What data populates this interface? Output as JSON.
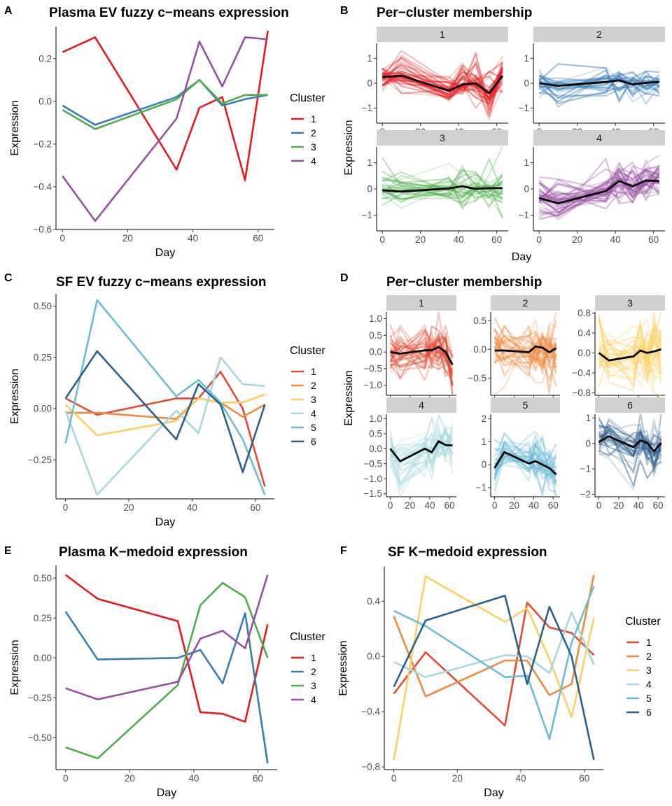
{
  "colors": {
    "set1": [
      "#e41a1c",
      "#377eb8",
      "#4daf4a",
      "#984ea3"
    ],
    "rdylbu": [
      "#e34a33",
      "#ef8a3e",
      "#fdcf63",
      "#a6d8e0",
      "#6bbcd6",
      "#2b5f8e"
    ],
    "center_line": "#000000",
    "strip_bg": "#d0d0d0"
  },
  "panels": {
    "A": {
      "letter": "A",
      "title": "Plasma EV fuzzy c−means expression",
      "xlabel": "Day",
      "ylabel": "Expression",
      "legend_title": "Cluster",
      "chart_data": {
        "type": "line",
        "x": [
          0,
          10,
          35,
          42,
          49,
          56,
          63
        ],
        "xlim": [
          -2,
          65
        ],
        "ylim": [
          -0.6,
          0.35
        ],
        "xticks": [
          0,
          20,
          40,
          60
        ],
        "xtick_labels": [
          "0",
          "20",
          "40",
          "60"
        ],
        "yticks": [
          -0.6,
          -0.4,
          -0.2,
          0.0,
          0.2
        ],
        "ytick_labels": [
          "−0.6",
          "−0.4",
          "−0.2",
          "0.0",
          "0.2"
        ],
        "grid": false,
        "legend_position": "right",
        "series": [
          {
            "name": "1",
            "values": [
              0.23,
              0.3,
              -0.32,
              -0.03,
              0.02,
              -0.37,
              0.33
            ]
          },
          {
            "name": "2",
            "values": [
              -0.02,
              -0.11,
              0.02,
              0.1,
              -0.02,
              0.01,
              0.03
            ]
          },
          {
            "name": "3",
            "values": [
              -0.04,
              -0.13,
              0.01,
              0.1,
              -0.01,
              0.03,
              0.03
            ]
          },
          {
            "name": "4",
            "values": [
              -0.35,
              -0.56,
              -0.08,
              0.28,
              0.07,
              0.3,
              0.29
            ]
          }
        ]
      }
    },
    "B": {
      "letter": "B",
      "title": "Per−cluster membership",
      "xlabel": "Day",
      "ylabel": "Expression",
      "chart_data": {
        "type": "line",
        "x": [
          0,
          10,
          35,
          42,
          49,
          56,
          63
        ],
        "xlim": [
          -3,
          66
        ],
        "xticks": [
          0,
          20,
          40,
          60
        ],
        "xtick_labels": [
          "0",
          "20",
          "40",
          "60"
        ],
        "ylim": [
          -1.6,
          1.6
        ],
        "yticks": [
          -1,
          0,
          1
        ],
        "ytick_labels": [
          "−1",
          "0",
          "1"
        ],
        "grid": false,
        "facets": [
          {
            "label": "1",
            "center": [
              0.25,
              0.3,
              -0.3,
              -0.05,
              0.0,
              -0.4,
              0.3
            ],
            "n": 35,
            "spread": 0.35
          },
          {
            "label": "2",
            "center": [
              0.0,
              -0.1,
              0.05,
              0.12,
              -0.05,
              0.02,
              0.05
            ],
            "n": 25,
            "spread": 0.3
          },
          {
            "label": "3",
            "center": [
              -0.05,
              -0.1,
              0.02,
              0.1,
              0.0,
              0.03,
              0.03
            ],
            "n": 25,
            "spread": 0.4
          },
          {
            "label": "4",
            "center": [
              -0.35,
              -0.55,
              -0.08,
              0.3,
              0.1,
              0.32,
              0.3
            ],
            "n": 35,
            "spread": 0.35
          }
        ]
      }
    },
    "C": {
      "letter": "C",
      "title": "SF EV fuzzy c−means expression",
      "xlabel": "Day",
      "ylabel": "Expression",
      "legend_title": "Cluster",
      "chart_data": {
        "type": "line",
        "x": [
          0,
          10,
          35,
          42,
          49,
          56,
          63
        ],
        "xlim": [
          -3,
          66
        ],
        "ylim": [
          -0.44,
          0.56
        ],
        "xticks": [
          0,
          20,
          40,
          60
        ],
        "xtick_labels": [
          "0",
          "20",
          "40",
          "60"
        ],
        "yticks": [
          -0.25,
          0.0,
          0.25,
          0.5
        ],
        "ytick_labels": [
          "−0.25",
          "0.00",
          "0.25",
          "0.50"
        ],
        "grid": false,
        "legend_position": "right",
        "series": [
          {
            "name": "1",
            "values": [
              0.05,
              -0.03,
              0.05,
              0.05,
              0.18,
              0.0,
              -0.38
            ]
          },
          {
            "name": "2",
            "values": [
              -0.02,
              -0.02,
              -0.05,
              0.05,
              0.03,
              -0.04,
              0.02
            ]
          },
          {
            "name": "3",
            "values": [
              0.02,
              -0.13,
              -0.06,
              0.05,
              0.03,
              0.03,
              0.07
            ]
          },
          {
            "name": "4",
            "values": [
              -0.01,
              -0.42,
              -0.01,
              -0.12,
              0.25,
              0.12,
              0.11
            ]
          },
          {
            "name": "5",
            "values": [
              -0.17,
              0.53,
              0.06,
              0.14,
              0.03,
              -0.15,
              -0.42
            ]
          },
          {
            "name": "6",
            "values": [
              0.05,
              0.28,
              -0.15,
              0.12,
              0.02,
              -0.31,
              0.02
            ]
          }
        ]
      }
    },
    "D": {
      "letter": "D",
      "title": "Per−cluster membership",
      "xlabel": "Day",
      "ylabel": "Expression",
      "chart_data": {
        "type": "line",
        "x": [
          0,
          10,
          35,
          42,
          49,
          56,
          63
        ],
        "xlim": [
          -4,
          67
        ],
        "xticks": [
          0,
          20,
          40,
          60
        ],
        "xtick_labels": [
          "0",
          "20",
          "40",
          "60"
        ],
        "grid": false,
        "facets": [
          {
            "label": "1",
            "center": [
              0.0,
              -0.05,
              0.05,
              0.05,
              0.15,
              0.0,
              -0.38
            ],
            "n": 30,
            "spread": 0.35,
            "ylim": [
              -1.3,
              1.2
            ],
            "yticks": [
              -1.0,
              -0.5,
              0.0,
              0.5,
              1.0
            ],
            "ytick_labels": [
              "−1.0",
              "−0.5",
              "0.0",
              "0.5",
              "1.0"
            ]
          },
          {
            "label": "2",
            "center": [
              -0.02,
              -0.02,
              -0.05,
              0.05,
              0.03,
              -0.05,
              0.02
            ],
            "n": 30,
            "spread": 0.25,
            "ylim": [
              -0.8,
              0.65
            ],
            "yticks": [
              -0.5,
              0.0,
              0.5
            ],
            "ytick_labels": [
              "−0.5",
              "0.0",
              "0.5"
            ]
          },
          {
            "label": "3",
            "center": [
              0.0,
              -0.15,
              -0.07,
              0.05,
              0.0,
              0.03,
              0.07
            ],
            "n": 30,
            "spread": 0.3,
            "ylim": [
              -0.85,
              0.82
            ],
            "yticks": [
              -0.8,
              -0.4,
              0.0,
              0.4,
              0.8
            ],
            "ytick_labels": [
              "−0.8",
              "−0.4",
              "0.0",
              "0.4",
              "0.8"
            ]
          },
          {
            "label": "4",
            "center": [
              0.0,
              -0.42,
              0.0,
              -0.12,
              0.25,
              0.12,
              0.11
            ],
            "n": 30,
            "spread": 0.35,
            "ylim": [
              -1.6,
              1.15
            ],
            "yticks": [
              -1.5,
              -1.0,
              -0.5,
              0.0,
              0.5,
              1.0
            ],
            "ytick_labels": [
              "−1.5",
              "−1.0",
              "−0.5",
              "0.0",
              "0.5",
              "1.0"
            ]
          },
          {
            "label": "5",
            "center": [
              -0.15,
              0.55,
              0.05,
              0.15,
              0.0,
              -0.15,
              -0.42
            ],
            "n": 30,
            "spread": 0.45,
            "ylim": [
              -1.4,
              2.2
            ],
            "yticks": [
              -1,
              0,
              1,
              2
            ],
            "ytick_labels": [
              "−1",
              "0",
              "1",
              "2"
            ]
          },
          {
            "label": "6",
            "center": [
              0.05,
              0.28,
              -0.15,
              0.12,
              0.02,
              -0.31,
              0.02
            ],
            "n": 30,
            "spread": 0.4,
            "ylim": [
              -2.1,
              1.15
            ],
            "yticks": [
              -2,
              -1,
              0,
              1
            ],
            "ytick_labels": [
              "−2",
              "−1",
              "0",
              "1"
            ]
          }
        ]
      }
    },
    "E": {
      "letter": "E",
      "title": "Plasma K−medoid expression",
      "xlabel": "Day",
      "ylabel": "Expression",
      "legend_title": "Cluster",
      "chart_data": {
        "type": "line",
        "x": [
          0,
          10,
          35,
          42,
          49,
          56,
          63
        ],
        "xlim": [
          -3,
          66
        ],
        "ylim": [
          -0.7,
          0.58
        ],
        "xticks": [
          0,
          20,
          40,
          60
        ],
        "xtick_labels": [
          "0",
          "20",
          "40",
          "60"
        ],
        "yticks": [
          -0.5,
          -0.25,
          0.0,
          0.25,
          0.5
        ],
        "ytick_labels": [
          "−0.50",
          "−0.25",
          "0.00",
          "0.25",
          "0.50"
        ],
        "grid": false,
        "legend_position": "right",
        "series": [
          {
            "name": "1",
            "values": [
              0.52,
              0.37,
              0.23,
              -0.34,
              -0.35,
              -0.4,
              0.21
            ]
          },
          {
            "name": "2",
            "values": [
              0.29,
              -0.01,
              0.0,
              0.05,
              -0.16,
              0.28,
              -0.66
            ]
          },
          {
            "name": "3",
            "values": [
              -0.56,
              -0.63,
              -0.17,
              0.33,
              0.47,
              0.38,
              0.0
            ]
          },
          {
            "name": "4",
            "values": [
              -0.19,
              -0.26,
              -0.15,
              0.12,
              0.17,
              0.06,
              0.52
            ]
          }
        ]
      }
    },
    "F": {
      "letter": "F",
      "title": "SF K−medoid expression",
      "xlabel": "Day",
      "ylabel": "Expression",
      "legend_title": "Cluster",
      "chart_data": {
        "type": "line",
        "x": [
          0,
          10,
          35,
          42,
          49,
          56,
          63
        ],
        "xlim": [
          -3,
          66
        ],
        "ylim": [
          -0.82,
          0.65
        ],
        "xticks": [
          0,
          20,
          40,
          60
        ],
        "xtick_labels": [
          "0",
          "20",
          "40",
          "60"
        ],
        "yticks": [
          -0.8,
          -0.4,
          0.0,
          0.4
        ],
        "ytick_labels": [
          "−0.8",
          "−0.4",
          "0.0",
          "0.4"
        ],
        "grid": false,
        "legend_position": "right",
        "series": [
          {
            "name": "1",
            "values": [
              -0.27,
              0.03,
              -0.5,
              0.39,
              0.21,
              0.17,
              0.01
            ]
          },
          {
            "name": "2",
            "values": [
              0.29,
              -0.29,
              -0.03,
              -0.03,
              -0.28,
              -0.2,
              0.59
            ]
          },
          {
            "name": "3",
            "values": [
              -0.75,
              0.58,
              0.25,
              0.35,
              -0.02,
              -0.44,
              0.28
            ]
          },
          {
            "name": "4",
            "values": [
              -0.04,
              -0.15,
              0.01,
              0.0,
              -0.12,
              0.32,
              -0.06
            ]
          },
          {
            "name": "5",
            "values": [
              0.33,
              0.22,
              -0.15,
              -0.14,
              -0.6,
              0.1,
              0.51
            ]
          },
          {
            "name": "6",
            "values": [
              -0.22,
              0.26,
              0.44,
              -0.2,
              0.36,
              0.0,
              -0.75
            ]
          }
        ]
      }
    }
  }
}
